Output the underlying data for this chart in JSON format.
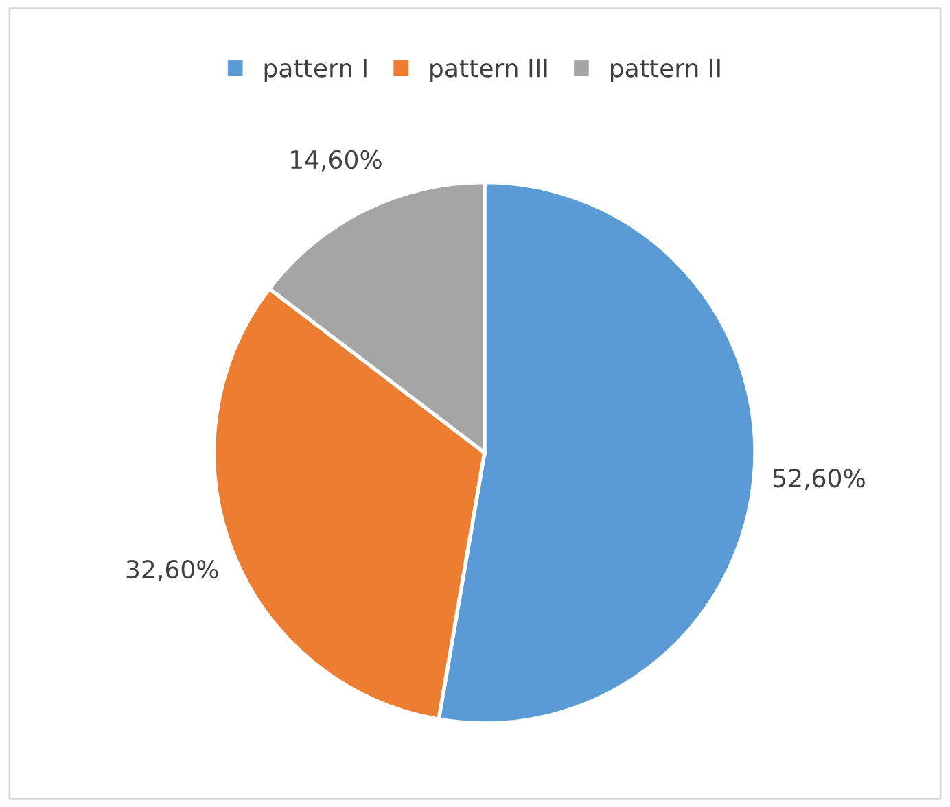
{
  "chart_data": {
    "type": "pie",
    "categories": [
      "pattern I",
      "pattern III",
      "pattern II"
    ],
    "values": [
      52.6,
      32.6,
      14.6
    ],
    "colors": [
      "#5b9bd5",
      "#ed7d31",
      "#a5a5a5"
    ],
    "value_labels": [
      "52,60%",
      "32,60%",
      "14,60%"
    ],
    "legend": "top"
  }
}
